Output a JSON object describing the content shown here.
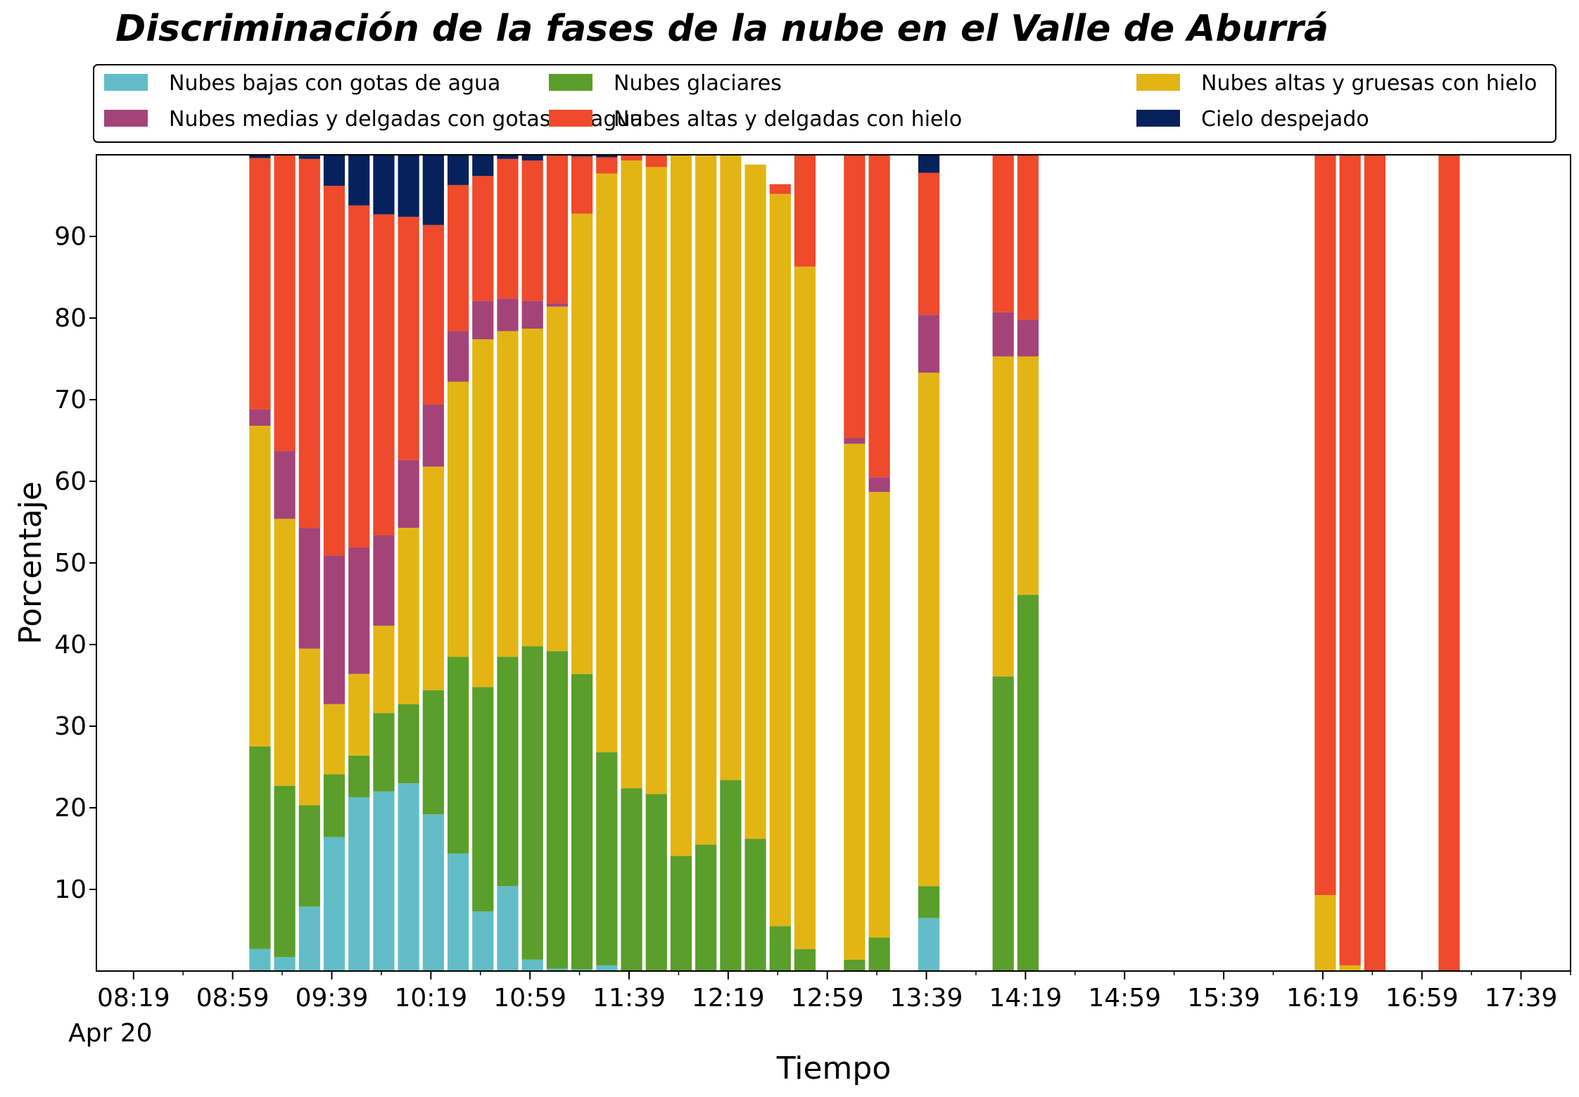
{
  "chart_data": {
    "type": "bar",
    "stacked": true,
    "title": "Discriminación de la fases de la nube en el Valle de Aburrá",
    "xlabel": "Tiempo",
    "ylabel": "Porcentaje",
    "ylim": [
      0,
      100
    ],
    "yticks": [
      10,
      20,
      30,
      40,
      50,
      60,
      70,
      80,
      90
    ],
    "x_date_label": "Apr 20",
    "xticks": [
      "08:19",
      "08:59",
      "09:39",
      "10:19",
      "10:59",
      "11:39",
      "12:19",
      "12:59",
      "13:39",
      "14:19",
      "14:59",
      "15:39",
      "16:19",
      "16:59",
      "17:39"
    ],
    "x": [
      "09:10",
      "09:20",
      "09:30",
      "09:40",
      "09:50",
      "10:00",
      "10:10",
      "10:20",
      "10:30",
      "10:40",
      "10:50",
      "11:00",
      "11:10",
      "11:20",
      "11:30",
      "11:40",
      "11:50",
      "12:00",
      "12:10",
      "12:20",
      "12:30",
      "12:40",
      "12:50",
      "13:10",
      "13:20",
      "13:40",
      "14:10",
      "14:20",
      "16:20",
      "16:30",
      "16:40",
      "17:10"
    ],
    "legend": {
      "placement": "top",
      "columns": 3
    },
    "grid": false,
    "series": [
      {
        "name": "Nubes bajas con gotas de agua",
        "color": "#63bdc8",
        "values": [
          2.7,
          1.7,
          7.9,
          16.4,
          21.3,
          22.0,
          23.0,
          19.2,
          14.4,
          7.3,
          10.4,
          1.4,
          0.3,
          0.2,
          0.7,
          0,
          0,
          0,
          0,
          0,
          0,
          0,
          0,
          0,
          0,
          6.5,
          0,
          0,
          0,
          0,
          0,
          0
        ]
      },
      {
        "name": "Nubes glaciares",
        "color": "#5a9e2b",
        "values": [
          24.8,
          21.0,
          12.4,
          7.7,
          5.1,
          9.6,
          9.7,
          15.2,
          24.1,
          27.5,
          28.1,
          38.4,
          38.9,
          36.2,
          26.1,
          22.4,
          21.7,
          14.1,
          15.5,
          23.4,
          16.2,
          5.5,
          2.7,
          1.4,
          4.1,
          3.9,
          36.1,
          46.1,
          0,
          0,
          0,
          0
        ]
      },
      {
        "name": "Nubes altas y gruesas con hielo",
        "color": "#e3b514",
        "values": [
          39.3,
          32.7,
          19.2,
          8.6,
          10.0,
          10.7,
          21.6,
          27.4,
          33.7,
          42.6,
          39.9,
          38.9,
          42.2,
          56.4,
          70.9,
          76.9,
          76.8,
          85.8,
          84.5,
          76.8,
          82.6,
          89.7,
          83.6,
          63.2,
          54.6,
          62.9,
          39.2,
          29.2,
          9.3,
          0.7,
          0,
          0
        ]
      },
      {
        "name": "Nubes medias y delgadas con gotas de agua",
        "color": "#a44378",
        "values": [
          2.0,
          8.3,
          14.8,
          18.2,
          15.5,
          11.1,
          8.3,
          7.6,
          6.2,
          4.7,
          4.0,
          3.4,
          0.4,
          0,
          0,
          0,
          0,
          0,
          0,
          0,
          0,
          0,
          0,
          0.7,
          1.8,
          7.1,
          5.4,
          4.5,
          0,
          0,
          0,
          0
        ]
      },
      {
        "name": "Nubes altas y delgadas con hielo",
        "color": "#ee4a2b",
        "values": [
          30.8,
          36.3,
          45.2,
          45.3,
          41.9,
          39.3,
          29.8,
          22.0,
          17.9,
          15.3,
          17.1,
          17.2,
          18.2,
          7.0,
          2.0,
          0.7,
          1.5,
          0.1,
          0.0,
          0.0,
          0.0,
          1.2,
          13.7,
          34.7,
          39.5,
          17.4,
          19.3,
          20.2,
          90.7,
          99.3,
          100,
          100
        ]
      },
      {
        "name": "Cielo despejado",
        "color": "#06215c",
        "values": [
          0.4,
          0,
          0.4,
          3.8,
          6.2,
          7.3,
          7.6,
          8.6,
          3.7,
          2.6,
          0.5,
          0.7,
          0,
          0.2,
          0.3,
          0,
          0,
          0,
          0,
          0,
          0,
          0,
          0,
          0,
          0,
          2.2,
          0,
          0,
          0,
          0,
          0,
          0
        ]
      }
    ]
  }
}
